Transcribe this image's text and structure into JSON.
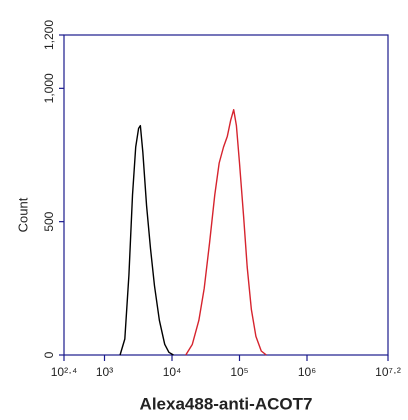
{
  "chart_data": {
    "type": "line",
    "xlabel": "Alexa488-anti-ACOT7",
    "ylabel": "Count",
    "log_x": true,
    "xlim": [
      251.19,
      15848932
    ],
    "xticks": [
      {
        "value": 251.19,
        "label": "10²·⁴"
      },
      {
        "value": 1000,
        "label": "10³"
      },
      {
        "value": 10000,
        "label": "10⁴"
      },
      {
        "value": 100000,
        "label": "10⁵"
      },
      {
        "value": 1000000,
        "label": "10⁶"
      },
      {
        "value": 15848932,
        "label": "10⁷·²"
      }
    ],
    "ylim": [
      0,
      1200
    ],
    "yticks": [
      0,
      500,
      {
        "value": 1000,
        "label": "1,000"
      },
      {
        "value": 1200,
        "label": "1,200"
      }
    ],
    "axis_color": "#1a1a8c",
    "series": [
      {
        "color": "#000000",
        "x": [
          1700,
          2000,
          2300,
          2600,
          2900,
          3200,
          3400,
          3700,
          4200,
          4800,
          5500,
          6500,
          7800,
          9000,
          10500
        ],
        "values": [
          0,
          60,
          300,
          600,
          780,
          850,
          860,
          760,
          560,
          400,
          260,
          130,
          40,
          10,
          0
        ]
      },
      {
        "color": "#d6242e",
        "x": [
          16000,
          20000,
          25000,
          30000,
          36000,
          43000,
          50000,
          58000,
          66000,
          74000,
          82000,
          90000,
          100000,
          115000,
          130000,
          150000,
          175000,
          210000,
          250000
        ],
        "values": [
          0,
          40,
          130,
          250,
          420,
          600,
          720,
          780,
          820,
          880,
          920,
          860,
          720,
          520,
          330,
          170,
          70,
          15,
          0
        ]
      }
    ]
  }
}
